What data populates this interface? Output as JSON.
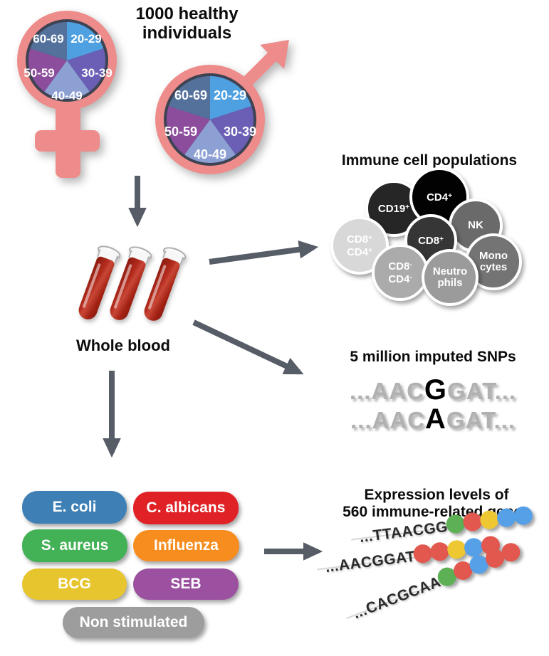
{
  "palette": {
    "pink": "#ee8b8b",
    "symbol_ring": "#3d4352",
    "arrow": "#565d66",
    "tube_red": "#b32b1d",
    "pie": {
      "age2029": "#4fa0e0",
      "age3039": "#6a5fb5",
      "age4049": "#8ca0d3",
      "age5059": "#8c4d9d",
      "age6069": "#54719b"
    },
    "dots": {
      "green": "#5db054",
      "red": "#e2574e",
      "yellow": "#eec832",
      "blue": "#56a0e8"
    }
  },
  "header": {
    "title_line1": "1000 healthy",
    "title_line2": "individuals"
  },
  "ages": {
    "a2029": "20-29",
    "a3039": "30-39",
    "a4049": "40-49",
    "a5059": "50-59",
    "a6069": "60-69"
  },
  "whole_blood": {
    "label": "Whole blood"
  },
  "immune": {
    "title": "Immune cell populations",
    "cells": [
      {
        "name": "CD19+",
        "color": "#262626",
        "lines": [
          {
            "t": "CD19",
            "s": "+"
          }
        ]
      },
      {
        "name": "CD4+",
        "color": "#020202",
        "lines": [
          {
            "t": "CD4",
            "s": "+"
          }
        ]
      },
      {
        "name": "NK",
        "color": "#6a6a6a",
        "lines": [
          {
            "t": "NK"
          }
        ]
      },
      {
        "name": "CD8+CD4+",
        "color": "#d8d8d8",
        "lines": [
          {
            "t": "CD8",
            "s": "+"
          },
          {
            "t": "CD4",
            "s": "+"
          }
        ]
      },
      {
        "name": "CD8+",
        "color": "#363636",
        "lines": [
          {
            "t": "CD8",
            "s": "+"
          }
        ]
      },
      {
        "name": "CD8-CD4-",
        "color": "#ababab",
        "lines": [
          {
            "t": "CD8",
            "s": "-"
          },
          {
            "t": "CD4",
            "s": "-"
          }
        ]
      },
      {
        "name": "Monocytes",
        "color": "#747474",
        "lines": [
          {
            "t": "Mono"
          },
          {
            "t": "cytes"
          }
        ]
      },
      {
        "name": "Neutrophils",
        "color": "#9b9b9b",
        "lines": [
          {
            "t": "Neutro"
          },
          {
            "t": "phils"
          }
        ]
      }
    ]
  },
  "snps": {
    "title": "5 million imputed SNPs",
    "rows": [
      {
        "pre": "...AAC",
        "snp": "G",
        "post": "GAT..."
      },
      {
        "pre": "...AAC",
        "snp": "A",
        "post": "GAT..."
      }
    ]
  },
  "stimulations": {
    "items": [
      {
        "label": "E. coli",
        "color": "#3e80b6"
      },
      {
        "label": "C. albicans",
        "color": "#e02126"
      },
      {
        "label": "S. aureus",
        "color": "#43b156"
      },
      {
        "label": "Influenza",
        "color": "#f78c1f"
      },
      {
        "label": "BCG",
        "color": "#e7c52e"
      },
      {
        "label": "SEB",
        "color": "#9b51a0"
      },
      {
        "label": "Non stimulated",
        "color": "#9d9d9d"
      }
    ]
  },
  "expression": {
    "title_line1": "Expression levels of",
    "title_line2": "560 immune-related genes",
    "rows": [
      {
        "seq": "...TTAACGG",
        "dots": [
          "green",
          "red",
          "yellow",
          "blue",
          "blue"
        ]
      },
      {
        "seq": "...AACGGAT",
        "dots": [
          "red",
          "red",
          "yellow",
          "blue",
          "red"
        ]
      },
      {
        "seq": "...CACGCAA",
        "dots": [
          "green",
          "red",
          "blue",
          "red",
          "red"
        ]
      }
    ]
  }
}
